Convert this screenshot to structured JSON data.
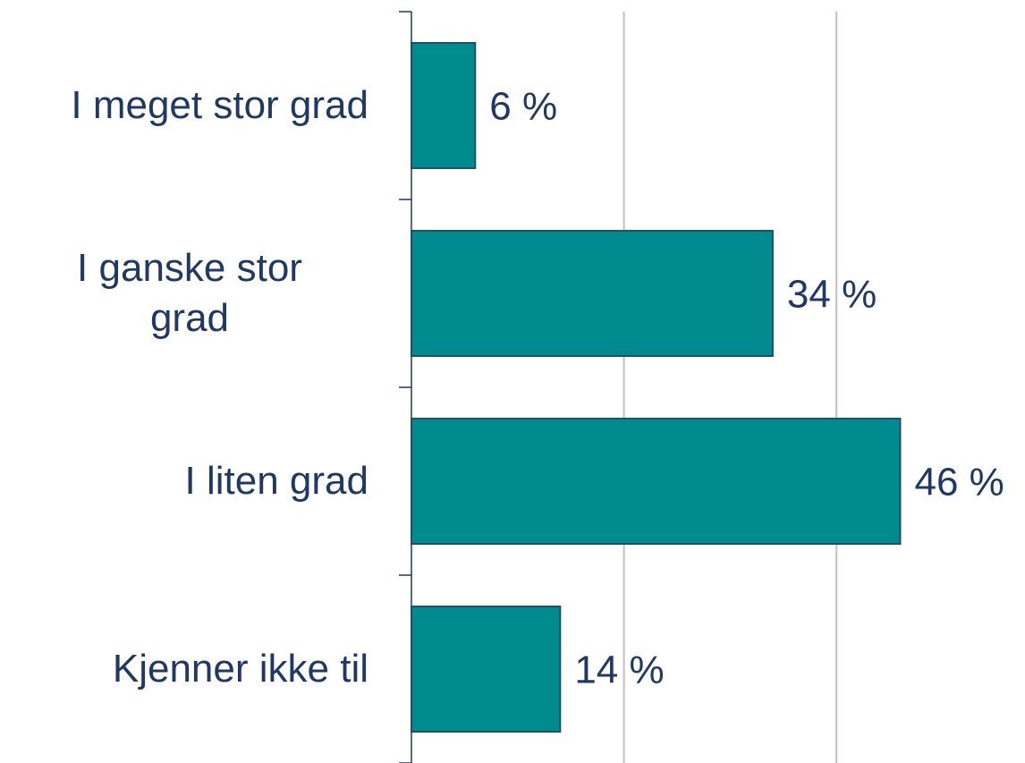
{
  "chart_data": {
    "type": "bar",
    "orientation": "horizontal",
    "categories": [
      "I meget stor grad",
      "I ganske stor\ngrad",
      "I liten grad",
      "Kjenner ikke til"
    ],
    "values": [
      6,
      34,
      46,
      14
    ],
    "value_labels": [
      "6 %",
      "34 %",
      "46 %",
      "14 %"
    ],
    "color": "#008b8f",
    "xlim": [
      0,
      57
    ],
    "xticks": [
      0,
      20,
      40
    ],
    "grid": true
  }
}
